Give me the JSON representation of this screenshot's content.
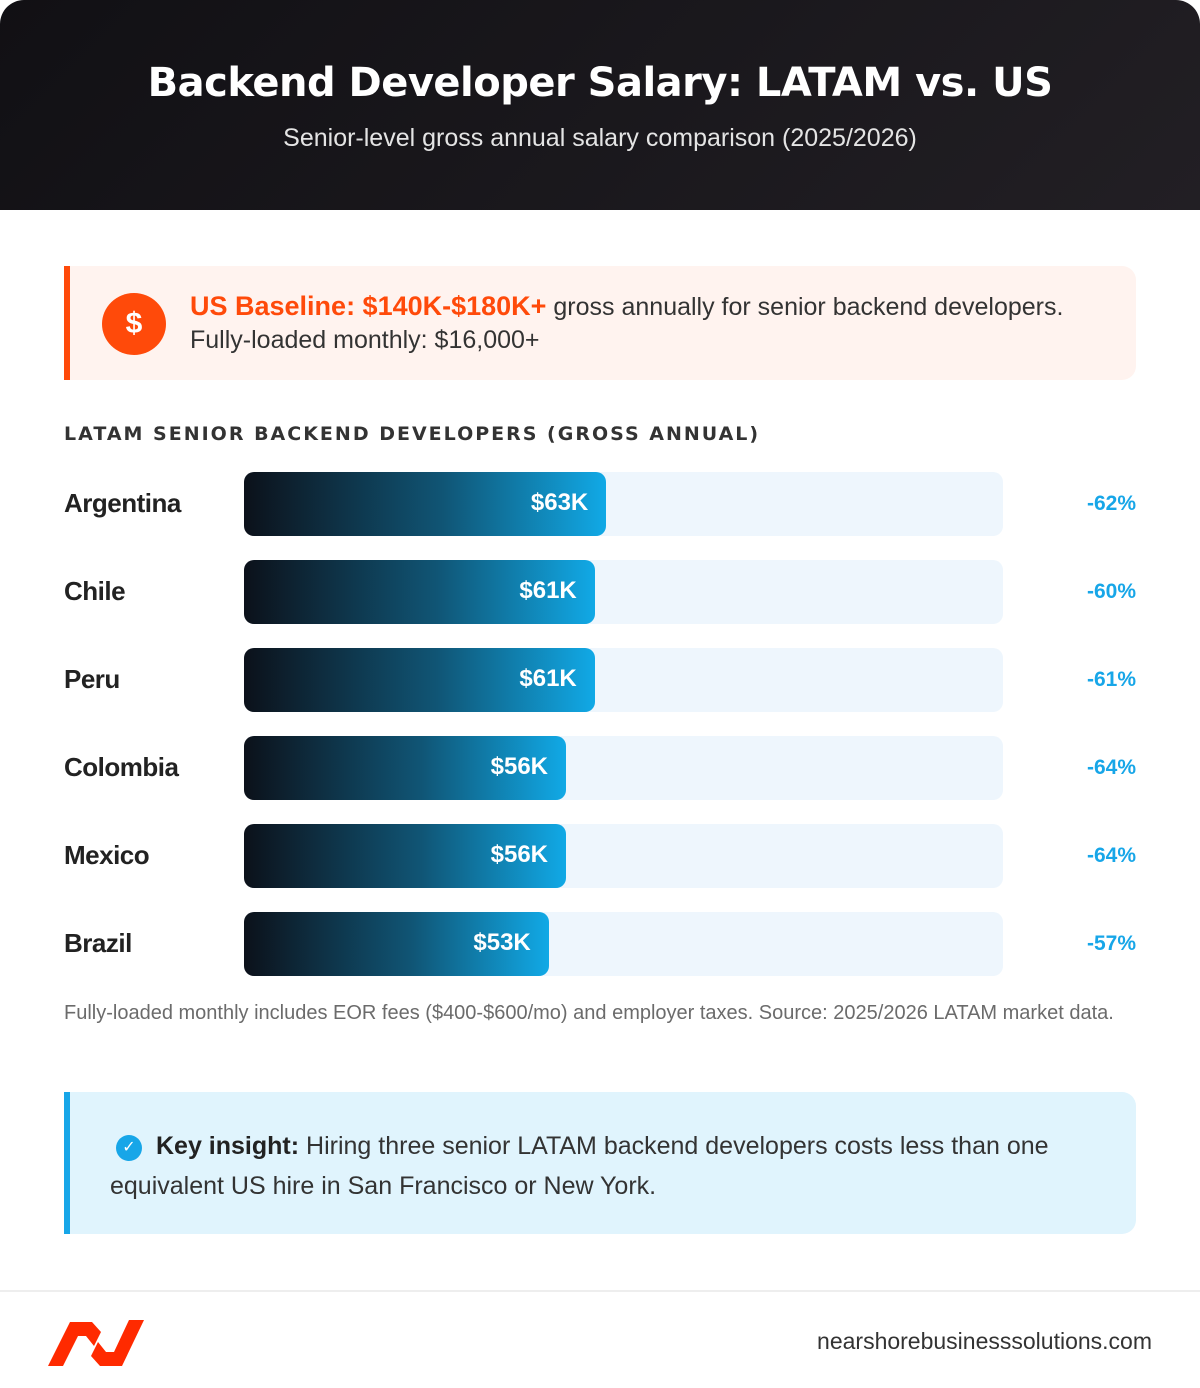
{
  "header": {
    "title": "Backend Developer Salary: LATAM vs. US",
    "subtitle": "Senior-level gross annual salary comparison (2025/2026)"
  },
  "baseline": {
    "icon": "dollar-icon",
    "highlight": "US Baseline: $140K-$180K+",
    "text": " gross annually for senior backend developers.",
    "monthly": "Fully-loaded monthly: $16,000+"
  },
  "chart_data": {
    "type": "bar",
    "orientation": "horizontal",
    "title": "LATAM SENIOR BACKEND DEVELOPERS (GROSS ANNUAL)",
    "categories": [
      "Argentina",
      "Chile",
      "Peru",
      "Colombia",
      "Mexico",
      "Brazil"
    ],
    "values": [
      63,
      61,
      61,
      56,
      56,
      53
    ],
    "value_labels": [
      "$63K",
      "$61K",
      "$61K",
      "$56K",
      "$56K",
      "$53K"
    ],
    "diff_labels": [
      "-62%",
      "-60%",
      "-61%",
      "-64%",
      "-64%",
      "-57%"
    ],
    "xlim": [
      0,
      132
    ],
    "unit": "thousand USD",
    "grid": false,
    "colors": {
      "bar_start": "#0c111a",
      "bar_end": "#11a9e6",
      "track": "#eef6fd",
      "diff": "#17a6e8"
    }
  },
  "note": "Fully-loaded monthly includes EOR fees ($400-$600/mo) and employer taxes. Source: 2025/2026 LATAM market data.",
  "insight": {
    "icon": "check-circle-icon",
    "label": "Key insight:",
    "text": " Hiring three senior LATAM backend developers costs less than one equivalent US hire in San Francisco or New York."
  },
  "footer": {
    "site": "nearshorebusinesssolutions.com"
  },
  "colors": {
    "accent": "#ff4a0a",
    "blue": "#17a6e8"
  }
}
